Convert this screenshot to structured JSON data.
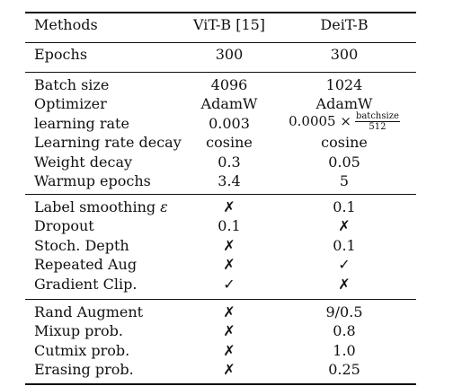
{
  "table": {
    "header": [
      "Methods",
      "ViT-B [15]",
      "DeiT-B"
    ],
    "groups": [
      [
        [
          "Epochs",
          "300",
          "300"
        ]
      ],
      [
        [
          "Batch size",
          "4096",
          "1024"
        ],
        [
          "Optimizer",
          "AdamW",
          "AdamW"
        ],
        [
          "learning rate",
          "0.003",
          {
            "coef": "0.0005 ×",
            "num": "batchsize",
            "den": "512"
          }
        ],
        [
          "Learning rate decay",
          "cosine",
          "cosine"
        ],
        [
          "Weight decay",
          "0.3",
          "0.05"
        ],
        [
          "Warmup epochs",
          "3.4",
          "5"
        ]
      ],
      [
        [
          "Label smoothing",
          "✗",
          "0.1"
        ],
        [
          "Dropout",
          "0.1",
          "✗"
        ],
        [
          "Stoch. Depth",
          "✗",
          "0.1"
        ],
        [
          "Repeated Aug",
          "✗",
          "✓"
        ],
        [
          "Gradient Clip.",
          "✓",
          "✗"
        ]
      ],
      [
        [
          "Rand Augment",
          "✗",
          "9/0.5"
        ],
        [
          "Mixup prob.",
          "✗",
          "0.8"
        ],
        [
          "Cutmix prob.",
          "✗",
          "1.0"
        ],
        [
          "Erasing prob.",
          "✗",
          "0.25"
        ]
      ]
    ],
    "label_smoothing_symbol": "ε"
  }
}
